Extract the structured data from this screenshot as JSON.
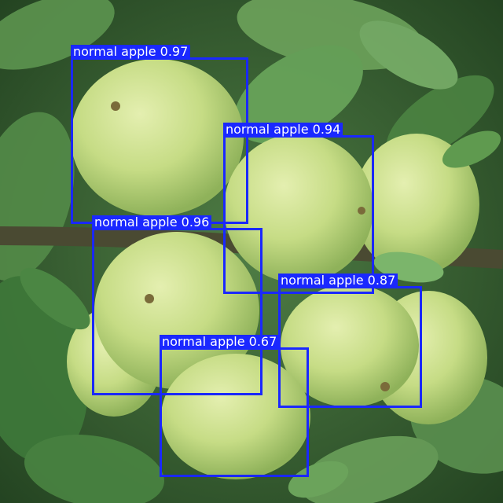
{
  "image": {
    "subject": "green apples on a tree branch with leaves",
    "colors": {
      "box": "#1a28ff",
      "label_text": "#ffffff",
      "apple": "#c9dd8a",
      "leaf": "#4e8a46"
    }
  },
  "detections": [
    {
      "label": "normal apple",
      "score": "0.97",
      "caption": "normal apple 0.97"
    },
    {
      "label": "normal apple",
      "score": "0.94",
      "caption": "normal apple 0.94"
    },
    {
      "label": "normal apple",
      "score": "0.96",
      "caption": "normal apple 0.96"
    },
    {
      "label": "normal apple",
      "score": "0.87",
      "caption": "normal apple 0.87"
    },
    {
      "label": "normal apple",
      "score": "0.67",
      "caption": "normal apple 0.67"
    }
  ]
}
